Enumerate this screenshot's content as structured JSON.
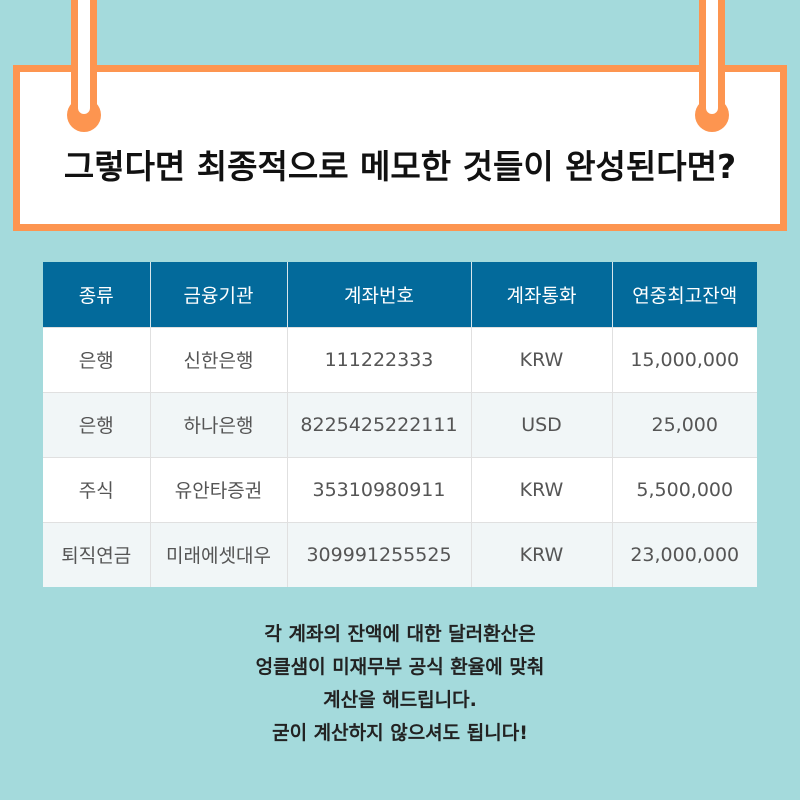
{
  "colors": {
    "background": "#a4dadc",
    "accent": "#fd9550",
    "header": "#036a9b"
  },
  "title": "그렇다면 최종적으로 메모한 것들이 완성된다면?",
  "table": {
    "headers": [
      "종류",
      "금융기관",
      "계좌번호",
      "계좌통화",
      "연중최고잔액"
    ],
    "rows": [
      [
        "은행",
        "신한은행",
        "111222333",
        "KRW",
        "15,000,000"
      ],
      [
        "은행",
        "하나은행",
        "8225425222111",
        "USD",
        "25,000"
      ],
      [
        "주식",
        "유안타증권",
        "35310980911",
        "KRW",
        "5,500,000"
      ],
      [
        "퇴직연금",
        "미래에셋대우",
        "309991255525",
        "KRW",
        "23,000,000"
      ]
    ]
  },
  "note": [
    "각 계좌의 잔액에 대한 달러환산은",
    "엉클샘이 미재무부 공식 환율에 맞춰",
    "계산을 해드립니다.",
    "굳이 계산하지 않으셔도 됩니다!"
  ]
}
